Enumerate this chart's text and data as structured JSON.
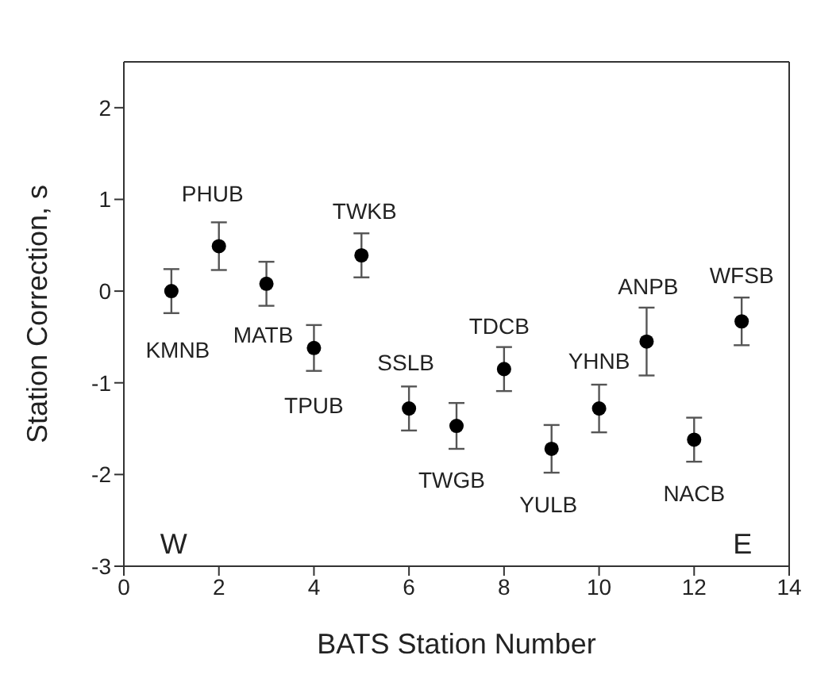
{
  "chart_data": {
    "type": "scatter",
    "xlabel": "BATS Station Number",
    "ylabel": "Station Correction, s",
    "x": [
      1,
      2,
      3,
      4,
      5,
      6,
      7,
      8,
      9,
      10,
      11,
      12,
      13
    ],
    "values": [
      0,
      0.49,
      0.08,
      -0.62,
      0.39,
      -1.28,
      -1.47,
      -0.85,
      -1.72,
      -1.28,
      -0.55,
      -1.62,
      -0.33
    ],
    "errors": [
      0.24,
      0.26,
      0.24,
      0.25,
      0.24,
      0.24,
      0.25,
      0.24,
      0.26,
      0.26,
      0.37,
      0.24,
      0.26
    ],
    "color": "#000000",
    "marker": "circle",
    "grid": false,
    "legend": false,
    "xlim": [
      0,
      14
    ],
    "xticks": [
      0,
      2,
      4,
      6,
      8,
      10,
      12,
      14
    ],
    "ylim": [
      -3,
      2.5
    ],
    "yticks": [
      -3,
      -2,
      -1,
      0,
      1,
      2
    ],
    "annotations": [
      {
        "text": "KMNB",
        "x": 1,
        "y": 0
      },
      {
        "text": "PHUB",
        "x": 2,
        "y": 0.49
      },
      {
        "text": "MATB",
        "x": 3,
        "y": 0.08
      },
      {
        "text": "TPUB",
        "x": 4,
        "y": -0.62
      },
      {
        "text": "TWKB",
        "x": 5,
        "y": 0.39
      },
      {
        "text": "SSLB",
        "x": 6,
        "y": -1.28
      },
      {
        "text": "TWGB",
        "x": 7,
        "y": -1.47
      },
      {
        "text": "TDCB",
        "x": 8,
        "y": -0.85
      },
      {
        "text": "YULB",
        "x": 9,
        "y": -1.72
      },
      {
        "text": "YHNB",
        "x": 10,
        "y": -1.28
      },
      {
        "text": "ANPB",
        "x": 11,
        "y": -0.55
      },
      {
        "text": "NACB",
        "x": 12,
        "y": -1.62
      },
      {
        "text": "WFSB",
        "x": 13,
        "y": -0.33
      },
      "W",
      "E"
    ]
  }
}
